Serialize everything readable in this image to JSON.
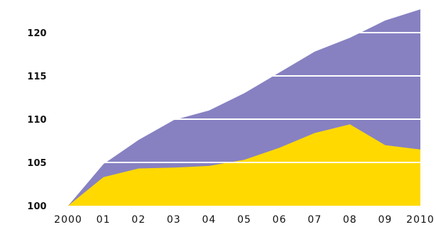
{
  "chart_data": {
    "type": "area",
    "title": "",
    "xlabel": "",
    "ylabel": "",
    "categories": [
      "2000",
      "01",
      "02",
      "03",
      "04",
      "05",
      "06",
      "07",
      "08",
      "09",
      "2010"
    ],
    "ylim": [
      100,
      123
    ],
    "yticks": [
      "100",
      "105",
      "110",
      "115",
      "120"
    ],
    "grid": "horizontal white lines over the areas",
    "legend": "none",
    "series": [
      {
        "color": "#8781c2",
        "values": [
          100,
          104.8,
          107.6,
          109.9,
          111.0,
          113.0,
          115.4,
          117.8,
          119.4,
          121.4,
          122.7
        ]
      },
      {
        "color": "#ffd900",
        "values": [
          100,
          103.3,
          104.3,
          104.4,
          104.6,
          105.3,
          106.7,
          108.4,
          109.4,
          107.0,
          106.5
        ]
      }
    ]
  }
}
